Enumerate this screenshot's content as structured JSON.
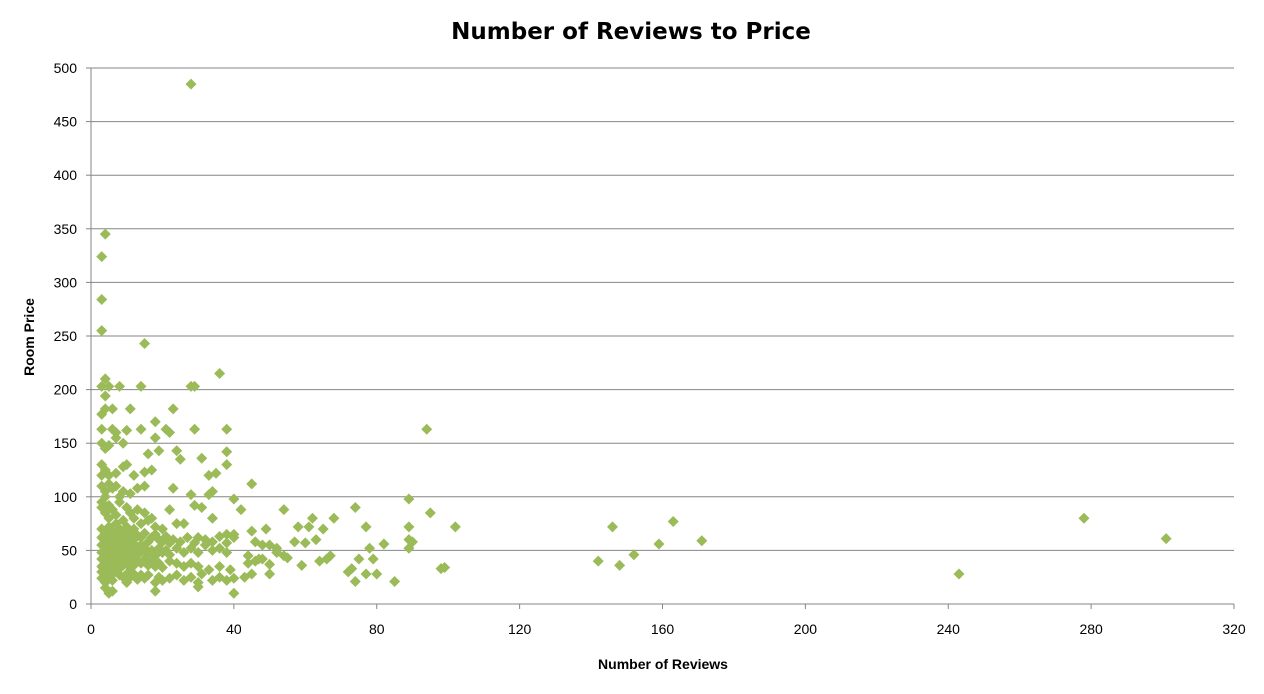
{
  "chart_data": {
    "type": "scatter",
    "title": "Number of Reviews to Price",
    "xlabel": "Number of Reviews",
    "ylabel": "Room Price",
    "xlim": [
      0,
      320
    ],
    "ylim": [
      0,
      500
    ],
    "x_ticks": [
      "0",
      "40",
      "80",
      "120",
      "160",
      "200",
      "240",
      "280",
      "320"
    ],
    "y_ticks": [
      "0",
      "50",
      "100",
      "150",
      "200",
      "250",
      "300",
      "350",
      "400",
      "450",
      "500"
    ],
    "grid": true,
    "legend": "none",
    "marker_color": "#9bbb59",
    "points": [
      [
        28,
        485
      ],
      [
        4,
        345
      ],
      [
        3,
        324
      ],
      [
        3,
        284
      ],
      [
        3,
        255
      ],
      [
        15,
        243
      ],
      [
        4,
        210
      ],
      [
        3,
        203
      ],
      [
        5,
        203
      ],
      [
        8,
        203
      ],
      [
        14,
        203
      ],
      [
        28,
        203
      ],
      [
        29,
        203
      ],
      [
        36,
        215
      ],
      [
        4,
        194
      ],
      [
        3,
        177
      ],
      [
        4,
        182
      ],
      [
        6,
        182
      ],
      [
        11,
        182
      ],
      [
        23,
        182
      ],
      [
        3,
        163
      ],
      [
        6,
        163
      ],
      [
        7,
        160
      ],
      [
        10,
        162
      ],
      [
        14,
        163
      ],
      [
        18,
        170
      ],
      [
        21,
        163
      ],
      [
        22,
        160
      ],
      [
        29,
        163
      ],
      [
        38,
        163
      ],
      [
        94,
        163
      ],
      [
        3,
        150
      ],
      [
        4,
        145
      ],
      [
        5,
        148
      ],
      [
        7,
        155
      ],
      [
        9,
        150
      ],
      [
        16,
        140
      ],
      [
        19,
        143
      ],
      [
        18,
        155
      ],
      [
        24,
        143
      ],
      [
        25,
        135
      ],
      [
        31,
        136
      ],
      [
        38,
        142
      ],
      [
        38,
        130
      ],
      [
        3,
        130
      ],
      [
        3,
        120
      ],
      [
        4,
        125
      ],
      [
        5,
        120
      ],
      [
        7,
        122
      ],
      [
        9,
        128
      ],
      [
        10,
        130
      ],
      [
        12,
        120
      ],
      [
        15,
        123
      ],
      [
        17,
        125
      ],
      [
        33,
        120
      ],
      [
        35,
        122
      ],
      [
        3,
        110
      ],
      [
        4,
        105
      ],
      [
        4,
        100
      ],
      [
        5,
        112
      ],
      [
        6,
        108
      ],
      [
        7,
        110
      ],
      [
        8,
        100
      ],
      [
        9,
        105
      ],
      [
        11,
        103
      ],
      [
        13,
        108
      ],
      [
        15,
        110
      ],
      [
        23,
        108
      ],
      [
        28,
        102
      ],
      [
        33,
        102
      ],
      [
        34,
        105
      ],
      [
        40,
        98
      ],
      [
        45,
        112
      ],
      [
        3,
        95
      ],
      [
        3,
        90
      ],
      [
        4,
        85
      ],
      [
        5,
        92
      ],
      [
        5,
        80
      ],
      [
        6,
        88
      ],
      [
        7,
        83
      ],
      [
        8,
        95
      ],
      [
        9,
        78
      ],
      [
        10,
        90
      ],
      [
        11,
        85
      ],
      [
        12,
        80
      ],
      [
        13,
        88
      ],
      [
        14,
        75
      ],
      [
        15,
        85
      ],
      [
        16,
        78
      ],
      [
        17,
        80
      ],
      [
        18,
        72
      ],
      [
        20,
        70
      ],
      [
        22,
        88
      ],
      [
        24,
        75
      ],
      [
        26,
        75
      ],
      [
        29,
        92
      ],
      [
        31,
        90
      ],
      [
        34,
        80
      ],
      [
        38,
        65
      ],
      [
        40,
        65
      ],
      [
        42,
        88
      ],
      [
        45,
        68
      ],
      [
        49,
        70
      ],
      [
        54,
        88
      ],
      [
        58,
        72
      ],
      [
        61,
        72
      ],
      [
        62,
        80
      ],
      [
        65,
        70
      ],
      [
        68,
        80
      ],
      [
        74,
        90
      ],
      [
        77,
        72
      ],
      [
        89,
        98
      ],
      [
        89,
        72
      ],
      [
        95,
        85
      ],
      [
        102,
        72
      ],
      [
        3,
        70
      ],
      [
        3,
        62
      ],
      [
        4,
        66
      ],
      [
        4,
        58
      ],
      [
        5,
        72
      ],
      [
        5,
        64
      ],
      [
        6,
        68
      ],
      [
        6,
        60
      ],
      [
        7,
        75
      ],
      [
        7,
        65
      ],
      [
        8,
        70
      ],
      [
        8,
        62
      ],
      [
        9,
        68
      ],
      [
        9,
        58
      ],
      [
        10,
        72
      ],
      [
        10,
        64
      ],
      [
        11,
        66
      ],
      [
        11,
        58
      ],
      [
        12,
        70
      ],
      [
        12,
        60
      ],
      [
        13,
        64
      ],
      [
        14,
        62
      ],
      [
        15,
        66
      ],
      [
        16,
        58
      ],
      [
        17,
        62
      ],
      [
        18,
        65
      ],
      [
        19,
        60
      ],
      [
        20,
        58
      ],
      [
        21,
        63
      ],
      [
        22,
        57
      ],
      [
        23,
        60
      ],
      [
        25,
        58
      ],
      [
        27,
        62
      ],
      [
        29,
        57
      ],
      [
        30,
        62
      ],
      [
        32,
        60
      ],
      [
        34,
        58
      ],
      [
        36,
        63
      ],
      [
        38,
        57
      ],
      [
        40,
        62
      ],
      [
        46,
        58
      ],
      [
        48,
        55
      ],
      [
        52,
        52
      ],
      [
        57,
        58
      ],
      [
        60,
        57
      ],
      [
        63,
        60
      ],
      [
        66,
        42
      ],
      [
        67,
        45
      ],
      [
        75,
        42
      ],
      [
        78,
        52
      ],
      [
        79,
        42
      ],
      [
        82,
        56
      ],
      [
        89,
        60
      ],
      [
        90,
        58
      ],
      [
        146,
        72
      ],
      [
        163,
        77
      ],
      [
        171,
        59
      ],
      [
        159,
        56
      ],
      [
        3,
        55
      ],
      [
        3,
        48
      ],
      [
        4,
        52
      ],
      [
        4,
        45
      ],
      [
        5,
        56
      ],
      [
        5,
        50
      ],
      [
        6,
        54
      ],
      [
        6,
        47
      ],
      [
        7,
        55
      ],
      [
        7,
        49
      ],
      [
        8,
        53
      ],
      [
        8,
        46
      ],
      [
        9,
        56
      ],
      [
        9,
        50
      ],
      [
        10,
        54
      ],
      [
        10,
        47
      ],
      [
        11,
        52
      ],
      [
        11,
        45
      ],
      [
        12,
        55
      ],
      [
        12,
        48
      ],
      [
        13,
        53
      ],
      [
        13,
        46
      ],
      [
        14,
        55
      ],
      [
        14,
        49
      ],
      [
        15,
        52
      ],
      [
        16,
        47
      ],
      [
        17,
        50
      ],
      [
        18,
        45
      ],
      [
        19,
        52
      ],
      [
        20,
        48
      ],
      [
        21,
        50
      ],
      [
        22,
        46
      ],
      [
        24,
        52
      ],
      [
        26,
        48
      ],
      [
        28,
        52
      ],
      [
        30,
        48
      ],
      [
        32,
        55
      ],
      [
        34,
        50
      ],
      [
        36,
        52
      ],
      [
        38,
        48
      ],
      [
        44,
        45
      ],
      [
        46,
        40
      ],
      [
        48,
        42
      ],
      [
        50,
        55
      ],
      [
        52,
        48
      ],
      [
        54,
        45
      ],
      [
        55,
        43
      ],
      [
        89,
        52
      ],
      [
        152,
        46
      ],
      [
        3,
        42
      ],
      [
        3,
        35
      ],
      [
        4,
        40
      ],
      [
        4,
        32
      ],
      [
        5,
        44
      ],
      [
        5,
        38
      ],
      [
        6,
        42
      ],
      [
        6,
        35
      ],
      [
        7,
        44
      ],
      [
        7,
        37
      ],
      [
        8,
        40
      ],
      [
        8,
        33
      ],
      [
        9,
        42
      ],
      [
        9,
        36
      ],
      [
        10,
        44
      ],
      [
        10,
        38
      ],
      [
        11,
        40
      ],
      [
        11,
        34
      ],
      [
        12,
        42
      ],
      [
        12,
        36
      ],
      [
        13,
        40
      ],
      [
        14,
        38
      ],
      [
        15,
        42
      ],
      [
        16,
        36
      ],
      [
        17,
        40
      ],
      [
        18,
        35
      ],
      [
        19,
        38
      ],
      [
        20,
        34
      ],
      [
        22,
        40
      ],
      [
        24,
        38
      ],
      [
        26,
        35
      ],
      [
        28,
        38
      ],
      [
        30,
        35
      ],
      [
        33,
        32
      ],
      [
        36,
        35
      ],
      [
        39,
        32
      ],
      [
        44,
        38
      ],
      [
        47,
        42
      ],
      [
        50,
        37
      ],
      [
        59,
        36
      ],
      [
        64,
        40
      ],
      [
        72,
        30
      ],
      [
        73,
        33
      ],
      [
        77,
        28
      ],
      [
        80,
        28
      ],
      [
        142,
        40
      ],
      [
        148,
        36
      ],
      [
        98,
        33
      ],
      [
        99,
        34
      ],
      [
        3,
        30
      ],
      [
        3,
        24
      ],
      [
        4,
        28
      ],
      [
        4,
        20
      ],
      [
        5,
        30
      ],
      [
        5,
        25
      ],
      [
        6,
        28
      ],
      [
        6,
        22
      ],
      [
        7,
        30
      ],
      [
        8,
        27
      ],
      [
        9,
        25
      ],
      [
        10,
        28
      ],
      [
        10,
        20
      ],
      [
        11,
        25
      ],
      [
        12,
        28
      ],
      [
        13,
        23
      ],
      [
        14,
        27
      ],
      [
        15,
        24
      ],
      [
        16,
        27
      ],
      [
        18,
        20
      ],
      [
        19,
        25
      ],
      [
        20,
        22
      ],
      [
        22,
        24
      ],
      [
        24,
        27
      ],
      [
        26,
        22
      ],
      [
        28,
        25
      ],
      [
        30,
        20
      ],
      [
        31,
        28
      ],
      [
        34,
        22
      ],
      [
        36,
        25
      ],
      [
        38,
        22
      ],
      [
        40,
        24
      ],
      [
        43,
        25
      ],
      [
        45,
        28
      ],
      [
        50,
        28
      ],
      [
        74,
        21
      ],
      [
        85,
        21
      ],
      [
        243,
        28
      ],
      [
        4,
        15
      ],
      [
        5,
        10
      ],
      [
        6,
        12
      ],
      [
        18,
        12
      ],
      [
        30,
        16
      ],
      [
        40,
        10
      ],
      [
        278,
        80
      ],
      [
        301,
        61
      ]
    ]
  }
}
